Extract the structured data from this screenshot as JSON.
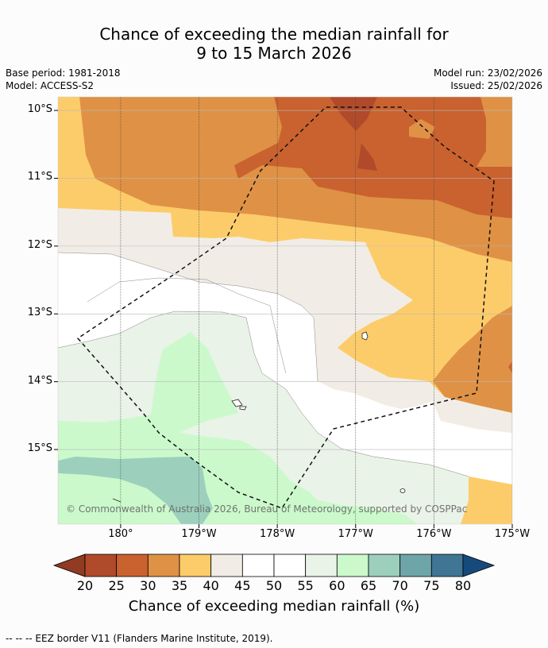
{
  "chart_data": {
    "type": "heatmap",
    "title": [
      "Chance of exceeding the median rainfall for",
      "9 to 15 March 2026"
    ],
    "base_period": "Base period: 1981-2018",
    "model": "Model: ACCESS-S2",
    "model_run": "Model run: 23/02/2026",
    "issued": "Issued: 25/02/2026",
    "lon_range": [
      179.2,
      185.0
    ],
    "lat_range": [
      -9.8,
      -16.1
    ],
    "x_ticks": [
      {
        "lon": 180,
        "label": "180°"
      },
      {
        "lon": 181,
        "label": "179°W"
      },
      {
        "lon": 182,
        "label": "178°W"
      },
      {
        "lon": 183,
        "label": "177°W"
      },
      {
        "lon": 184,
        "label": "176°W"
      },
      {
        "lon": 185,
        "label": "175°W"
      }
    ],
    "y_ticks": [
      {
        "lat": -10,
        "label": "10°S"
      },
      {
        "lat": -11,
        "label": "11°S"
      },
      {
        "lat": -12,
        "label": "12°S"
      },
      {
        "lat": -13,
        "label": "13°S"
      },
      {
        "lat": -14,
        "label": "14°S"
      },
      {
        "lat": -15,
        "label": "15°S"
      }
    ],
    "colorbar": {
      "bounds": [
        20,
        25,
        30,
        35,
        40,
        45,
        50,
        55,
        60,
        65,
        70,
        75,
        80
      ],
      "labels": [
        "20",
        "25",
        "30",
        "35",
        "40",
        "45",
        "50",
        "55",
        "60",
        "65",
        "70",
        "75",
        "80"
      ],
      "colors": [
        "#b04a2b",
        "#c9622f",
        "#df9245",
        "#fdcc6a",
        "#f1ede6",
        "#ffffff",
        "#ffffff",
        "#e9f3e7",
        "#cbf9cb",
        "#9cd0bd",
        "#6ea5a8",
        "#407693"
      ],
      "under_color": "#903b22",
      "over_color": "#174a7c",
      "label": "Chance of exceeding median rainfall (%)"
    },
    "regions": [
      {
        "value": "35-40",
        "color": "#fdcc6a"
      },
      {
        "value": "30-35",
        "color": "#df9245"
      },
      {
        "value": "25-30",
        "color": "#c9622f"
      },
      {
        "value": "20-25",
        "color": "#b04a2b"
      },
      {
        "value": "40-45",
        "color": "#f1ede6"
      },
      {
        "value": "45-55",
        "color": "#ffffff"
      },
      {
        "value": "55-60",
        "color": "#e9f3e7"
      },
      {
        "value": "60-65",
        "color": "#cbf9cb"
      },
      {
        "value": "65-70",
        "color": "#9cd0bd"
      }
    ],
    "copyright": "© Commonwealth of Australia 2026, Bureau of Meteorology, supported by COSPPac",
    "footnote": "--  --  -- EEZ border V11 (Flanders Marine Institute, 2019)."
  }
}
